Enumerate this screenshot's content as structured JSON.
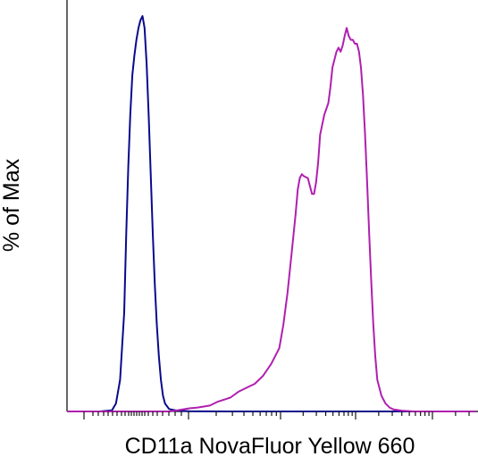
{
  "chart_data": {
    "type": "line",
    "title": "",
    "xlabel": "CD11a NovaFluor Yellow 660",
    "ylabel": "% of Max",
    "xlim": [
      0,
      1
    ],
    "ylim": [
      0,
      100
    ],
    "grid": false,
    "legend": "none",
    "x_tick_labels": [],
    "series": [
      {
        "color": "#0a0a8c",
        "points": [
          [
            0.0,
            0
          ],
          [
            0.08,
            0
          ],
          [
            0.11,
            0.3
          ],
          [
            0.12,
            2
          ],
          [
            0.13,
            8
          ],
          [
            0.14,
            25
          ],
          [
            0.145,
            45
          ],
          [
            0.15,
            62
          ],
          [
            0.155,
            75
          ],
          [
            0.16,
            85
          ],
          [
            0.165,
            90
          ],
          [
            0.17,
            94
          ],
          [
            0.175,
            97
          ],
          [
            0.18,
            99
          ],
          [
            0.185,
            100
          ],
          [
            0.19,
            97
          ],
          [
            0.195,
            88
          ],
          [
            0.2,
            75
          ],
          [
            0.205,
            60
          ],
          [
            0.21,
            45
          ],
          [
            0.215,
            32
          ],
          [
            0.22,
            22
          ],
          [
            0.225,
            14
          ],
          [
            0.23,
            8
          ],
          [
            0.235,
            4
          ],
          [
            0.24,
            2
          ],
          [
            0.25,
            0.6
          ],
          [
            0.27,
            0.2
          ],
          [
            0.3,
            0.05
          ],
          [
            0.4,
            0
          ],
          [
            1.0,
            0
          ]
        ]
      },
      {
        "color": "#b01fb0",
        "points": [
          [
            0.0,
            0
          ],
          [
            0.25,
            0
          ],
          [
            0.27,
            0.3
          ],
          [
            0.3,
            0.8
          ],
          [
            0.32,
            1
          ],
          [
            0.35,
            1.5
          ],
          [
            0.37,
            2.5
          ],
          [
            0.4,
            3.5
          ],
          [
            0.42,
            5
          ],
          [
            0.44,
            6
          ],
          [
            0.46,
            7
          ],
          [
            0.48,
            9
          ],
          [
            0.5,
            12
          ],
          [
            0.52,
            16
          ],
          [
            0.53,
            22
          ],
          [
            0.54,
            30
          ],
          [
            0.55,
            40
          ],
          [
            0.56,
            50
          ],
          [
            0.565,
            56
          ],
          [
            0.57,
            59
          ],
          [
            0.575,
            60
          ],
          [
            0.58,
            59.5
          ],
          [
            0.59,
            59
          ],
          [
            0.595,
            57
          ],
          [
            0.6,
            55
          ],
          [
            0.605,
            55
          ],
          [
            0.61,
            58
          ],
          [
            0.615,
            63
          ],
          [
            0.62,
            70
          ],
          [
            0.63,
            75
          ],
          [
            0.64,
            78
          ],
          [
            0.645,
            82
          ],
          [
            0.65,
            87
          ],
          [
            0.66,
            91
          ],
          [
            0.665,
            92
          ],
          [
            0.67,
            91
          ],
          [
            0.675,
            92.5
          ],
          [
            0.68,
            95
          ],
          [
            0.685,
            97
          ],
          [
            0.69,
            95
          ],
          [
            0.695,
            94
          ],
          [
            0.7,
            94
          ],
          [
            0.705,
            93
          ],
          [
            0.71,
            93
          ],
          [
            0.715,
            91
          ],
          [
            0.72,
            87
          ],
          [
            0.725,
            80
          ],
          [
            0.73,
            70
          ],
          [
            0.735,
            58
          ],
          [
            0.74,
            45
          ],
          [
            0.745,
            33
          ],
          [
            0.75,
            22
          ],
          [
            0.755,
            14
          ],
          [
            0.76,
            8
          ],
          [
            0.77,
            4
          ],
          [
            0.78,
            2
          ],
          [
            0.79,
            1
          ],
          [
            0.8,
            0.5
          ],
          [
            0.82,
            0.2
          ],
          [
            0.85,
            0
          ],
          [
            1.0,
            0
          ]
        ]
      }
    ]
  }
}
